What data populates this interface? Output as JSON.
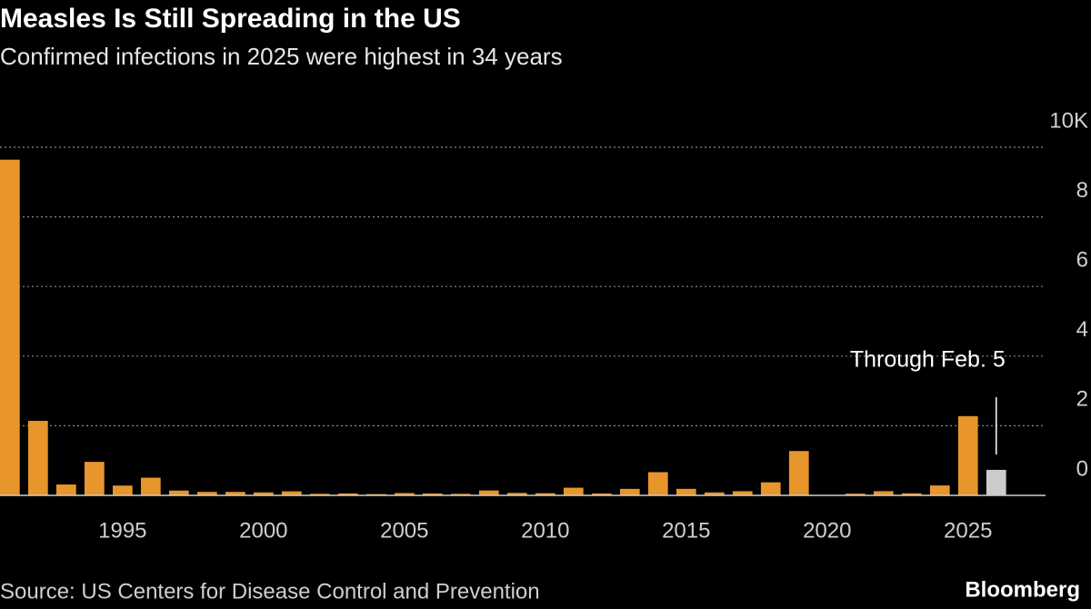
{
  "chart_data": {
    "type": "bar",
    "title": "Measles Is Still Spreading in the US",
    "subtitle": "Confirmed infections in 2025 were highest in 34 years",
    "source": "Source: US Centers for Disease Control and Prevention",
    "brand": "Bloomberg",
    "annotation": "Through Feb. 5",
    "x": [
      1991,
      1992,
      1993,
      1994,
      1995,
      1996,
      1997,
      1998,
      1999,
      2000,
      2001,
      2002,
      2003,
      2004,
      2005,
      2006,
      2007,
      2008,
      2009,
      2010,
      2011,
      2012,
      2013,
      2014,
      2015,
      2016,
      2017,
      2018,
      2019,
      2020,
      2021,
      2022,
      2023,
      2024,
      2025,
      2026
    ],
    "values": [
      9643,
      2140,
      312,
      963,
      281,
      508,
      138,
      100,
      100,
      86,
      116,
      44,
      56,
      37,
      66,
      55,
      43,
      140,
      71,
      63,
      220,
      55,
      187,
      667,
      188,
      86,
      120,
      375,
      1274,
      13,
      49,
      121,
      59,
      285,
      2276,
      733
    ],
    "colors": [
      "#e8952c",
      "#e8952c",
      "#e8952c",
      "#e8952c",
      "#e8952c",
      "#e8952c",
      "#e8952c",
      "#e8952c",
      "#e8952c",
      "#e8952c",
      "#e8952c",
      "#e8952c",
      "#e8952c",
      "#e8952c",
      "#e8952c",
      "#e8952c",
      "#e8952c",
      "#e8952c",
      "#e8952c",
      "#e8952c",
      "#e8952c",
      "#e8952c",
      "#e8952c",
      "#e8952c",
      "#e8952c",
      "#e8952c",
      "#e8952c",
      "#e8952c",
      "#e8952c",
      "#e8952c",
      "#e8952c",
      "#e8952c",
      "#e8952c",
      "#e8952c",
      "#e8952c",
      "#cccccc"
    ],
    "xlim": [
      1990.65,
      2027.75
    ],
    "xticks": [
      1995,
      2000,
      2005,
      2010,
      2015,
      2020,
      2025
    ],
    "ylim": [
      0,
      10000
    ],
    "yticks": [
      0,
      {
        "value": 2000,
        "label": "2"
      },
      {
        "value": 4000,
        "label": "4"
      },
      {
        "value": 6000,
        "label": "6"
      },
      {
        "value": 8000,
        "label": "8"
      },
      {
        "value": 10000,
        "label": "10K"
      }
    ],
    "grid": true,
    "y_axis_side": "right"
  }
}
